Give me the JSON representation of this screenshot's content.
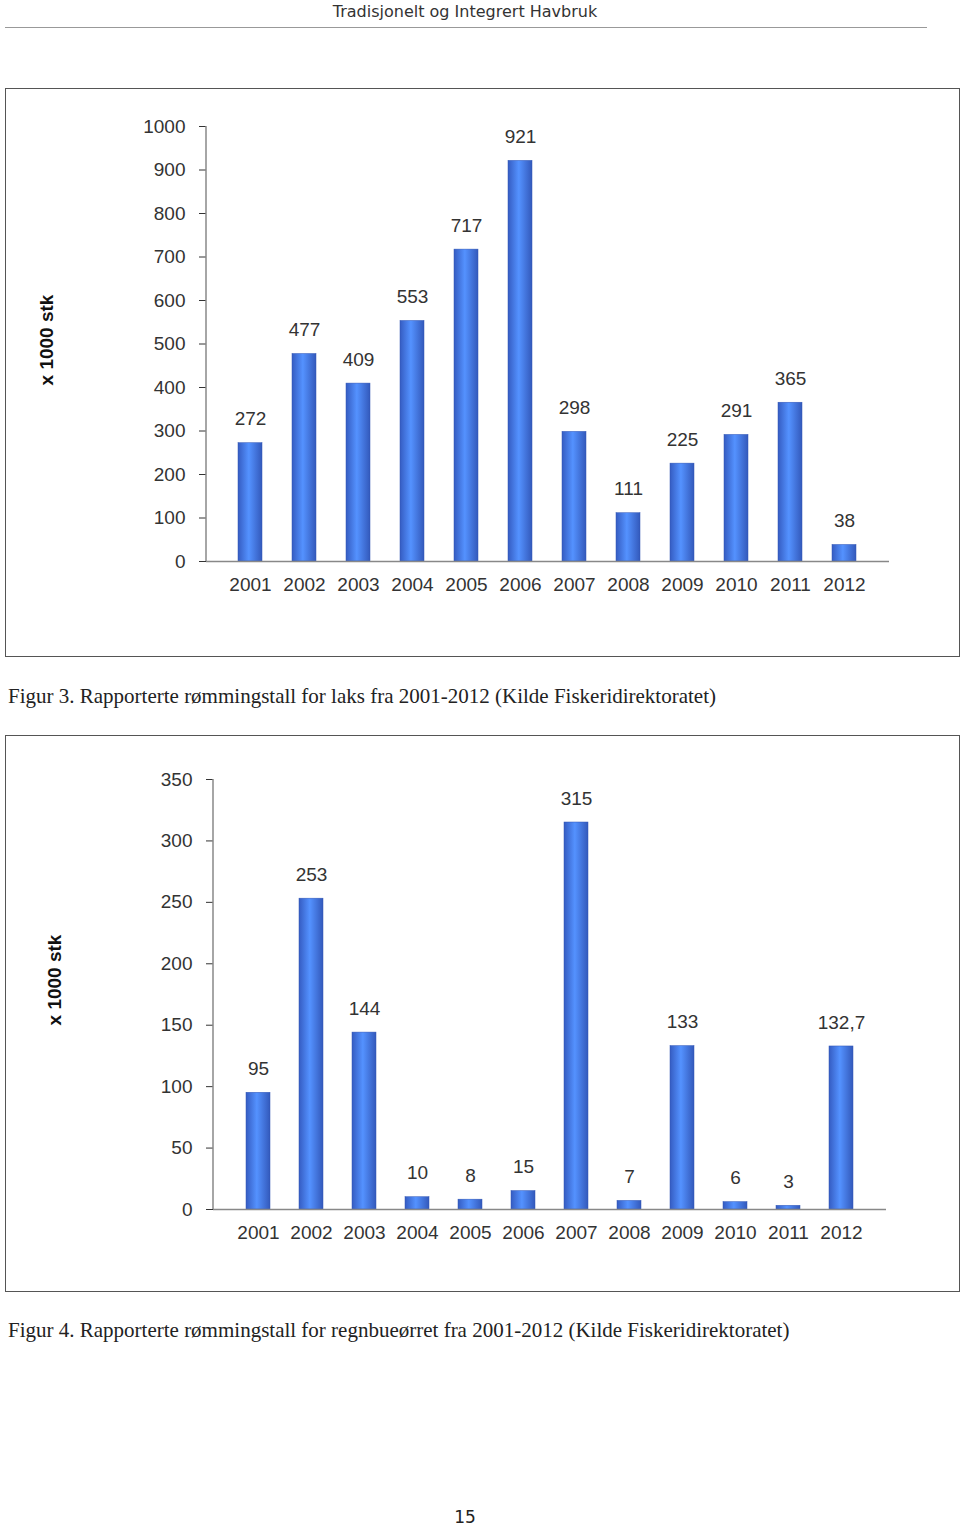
{
  "header": "Tradisjonelt og Integrert Havbruk",
  "page_number": "15",
  "chart_data": [
    {
      "type": "bar",
      "caption": "Figur 3. Rapporterte rømmingstall for laks fra 2001-2012 (Kilde Fiskeridirektoratet)",
      "y_label": "x 1000 stk",
      "categories": [
        "2001",
        "2002",
        "2003",
        "2004",
        "2005",
        "2006",
        "2007",
        "2008",
        "2009",
        "2010",
        "2011",
        "2012"
      ],
      "values": [
        272,
        477,
        409,
        553,
        717,
        921,
        298,
        111,
        225,
        291,
        365,
        38
      ],
      "color": "#3d6ae0",
      "ylim": [
        0,
        1000
      ],
      "yticks": [
        0,
        100,
        200,
        300,
        400,
        500,
        600,
        700,
        800,
        900,
        1000
      ],
      "data_labels": true
    },
    {
      "type": "bar",
      "caption": "Figur 4. Rapporterte rømmingstall for regnbueørret fra 2001-2012 (Kilde Fiskeridirektoratet)",
      "y_label": "x 1000 stk",
      "categories": [
        "2001",
        "2002",
        "2003",
        "2004",
        "2005",
        "2006",
        "2007",
        "2008",
        "2009",
        "2010",
        "2011",
        "2012"
      ],
      "values": [
        95,
        253,
        144,
        10,
        8,
        15,
        315,
        7,
        133,
        6,
        3,
        132.7
      ],
      "value_labels": [
        "95",
        "253",
        "144",
        "10",
        "8",
        "15",
        "315",
        "7",
        "133",
        "6",
        "3",
        "132,7"
      ],
      "color": "#3d6ae0",
      "ylim": [
        0,
        350
      ],
      "yticks": [
        0,
        50,
        100,
        150,
        200,
        250,
        300,
        350
      ],
      "data_labels": true
    }
  ]
}
